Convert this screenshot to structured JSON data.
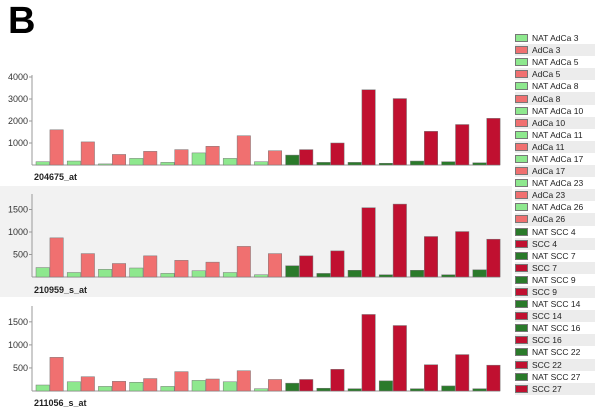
{
  "panel_label": "B",
  "colors": {
    "NAT AdCa": "#8ee88e",
    "AdCa": "#f07070",
    "NAT SCC": "#2a7a2a",
    "SCC": "#c01030"
  },
  "legend": [
    {
      "label": "NAT AdCa 3",
      "group": "NAT AdCa"
    },
    {
      "label": "AdCa 3",
      "group": "AdCa"
    },
    {
      "label": "NAT AdCa 5",
      "group": "NAT AdCa"
    },
    {
      "label": "AdCa 5",
      "group": "AdCa"
    },
    {
      "label": "NAT AdCa 8",
      "group": "NAT AdCa"
    },
    {
      "label": "AdCa 8",
      "group": "AdCa"
    },
    {
      "label": "NAT AdCa 10",
      "group": "NAT AdCa"
    },
    {
      "label": "AdCa 10",
      "group": "AdCa"
    },
    {
      "label": "NAT AdCa 11",
      "group": "NAT AdCa"
    },
    {
      "label": "AdCa 11",
      "group": "AdCa"
    },
    {
      "label": "NAT AdCa 17",
      "group": "NAT AdCa"
    },
    {
      "label": "AdCa 17",
      "group": "AdCa"
    },
    {
      "label": "NAT AdCa 23",
      "group": "NAT AdCa"
    },
    {
      "label": "AdCa 23",
      "group": "AdCa"
    },
    {
      "label": "NAT AdCa 26",
      "group": "NAT AdCa"
    },
    {
      "label": "AdCa 26",
      "group": "AdCa"
    },
    {
      "label": "NAT SCC 4",
      "group": "NAT SCC"
    },
    {
      "label": "SCC 4",
      "group": "SCC"
    },
    {
      "label": "NAT SCC 7",
      "group": "NAT SCC"
    },
    {
      "label": "SCC 7",
      "group": "SCC"
    },
    {
      "label": "NAT SCC 9",
      "group": "NAT SCC"
    },
    {
      "label": "SCC 9",
      "group": "SCC"
    },
    {
      "label": "NAT SCC 14",
      "group": "NAT SCC"
    },
    {
      "label": "SCC 14",
      "group": "SCC"
    },
    {
      "label": "NAT SCC 16",
      "group": "NAT SCC"
    },
    {
      "label": "SCC 16",
      "group": "SCC"
    },
    {
      "label": "NAT SCC 22",
      "group": "NAT SCC"
    },
    {
      "label": "SCC 22",
      "group": "SCC"
    },
    {
      "label": "NAT SCC 27",
      "group": "NAT SCC"
    },
    {
      "label": "SCC 27",
      "group": "SCC"
    }
  ],
  "chart_data": [
    {
      "type": "bar",
      "title": "204675_at",
      "ylim": [
        0,
        4000
      ],
      "yticks": [
        1000,
        2000,
        3000,
        4000
      ],
      "yticklabels": [
        "1000",
        "2000",
        "3000",
        "4000"
      ],
      "values": [
        150,
        1600,
        180,
        1050,
        50,
        480,
        300,
        620,
        120,
        700,
        550,
        850,
        300,
        1330,
        150,
        650,
        450,
        700,
        120,
        1000,
        120,
        3420,
        80,
        3020,
        180,
        1530,
        150,
        1840,
        100,
        2120
      ]
    },
    {
      "type": "bar",
      "title": "210959_s_at",
      "ylim": [
        0,
        1800
      ],
      "yticks": [
        500,
        1000,
        1500
      ],
      "yticklabels": [
        "500",
        "1000",
        "1500"
      ],
      "values": [
        210,
        870,
        100,
        520,
        170,
        300,
        200,
        470,
        80,
        370,
        140,
        330,
        100,
        680,
        50,
        520,
        250,
        470,
        80,
        580,
        150,
        1540,
        50,
        1620,
        150,
        900,
        50,
        1010,
        160,
        840
      ]
    },
    {
      "type": "bar",
      "title": "211056_s_at",
      "ylim": [
        0,
        1800
      ],
      "yticks": [
        500,
        1000,
        1500
      ],
      "yticklabels": [
        "500",
        "1000",
        "1500"
      ],
      "values": [
        130,
        730,
        200,
        310,
        100,
        210,
        190,
        270,
        100,
        420,
        230,
        260,
        200,
        440,
        50,
        250,
        170,
        250,
        60,
        470,
        50,
        1660,
        220,
        1420,
        50,
        570,
        110,
        790,
        50,
        560
      ]
    }
  ]
}
